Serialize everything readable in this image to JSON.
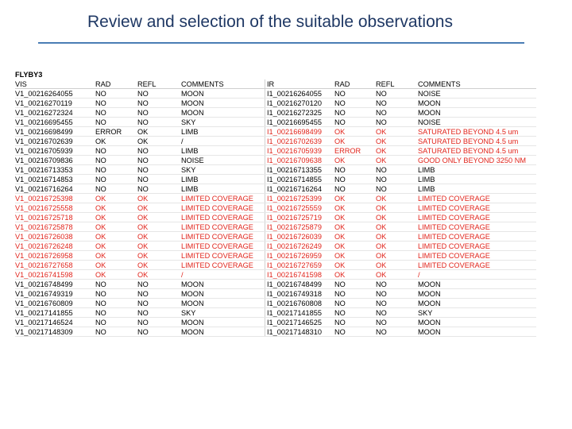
{
  "title": "Review and selection of the suitable observations",
  "sheet": {
    "flyby": "FLYBY3",
    "headers": [
      "VIS",
      "RAD",
      "REFL",
      "COMMENTS",
      "IR",
      "RAD",
      "REFL",
      "COMMENTS"
    ],
    "rows": [
      {
        "vis": "V1_00216264055",
        "vrad": "NO",
        "vrefl": "NO",
        "vcom": "MOON",
        "ir": "I1_00216264055",
        "irad": "NO",
        "irefl": "NO",
        "icom": "NOISE",
        "vred": false,
        "ired": false
      },
      {
        "vis": "V1_00216270119",
        "vrad": "NO",
        "vrefl": "NO",
        "vcom": "MOON",
        "ir": "I1_00216270120",
        "irad": "NO",
        "irefl": "NO",
        "icom": "MOON",
        "vred": false,
        "ired": false
      },
      {
        "vis": "V1_00216272324",
        "vrad": "NO",
        "vrefl": "NO",
        "vcom": "MOON",
        "ir": "I1_00216272325",
        "irad": "NO",
        "irefl": "NO",
        "icom": "MOON",
        "vred": false,
        "ired": false
      },
      {
        "vis": "V1_00216695455",
        "vrad": "NO",
        "vrefl": "NO",
        "vcom": "SKY",
        "ir": "I1_00216695455",
        "irad": "NO",
        "irefl": "NO",
        "icom": "NOISE",
        "vred": false,
        "ired": false
      },
      {
        "vis": "V1_00216698499",
        "vrad": "ERROR",
        "vrefl": "OK",
        "vcom": "LIMB",
        "ir": "I1_00216698499",
        "irad": "OK",
        "irefl": "OK",
        "icom": "SATURATED BEYOND 4.5 um",
        "vred": false,
        "ired": true
      },
      {
        "vis": "V1_00216702639",
        "vrad": "OK",
        "vrefl": "OK",
        "vcom": "/",
        "ir": "I1_00216702639",
        "irad": "OK",
        "irefl": "OK",
        "icom": "SATURATED BEYOND 4.5 um",
        "vred": false,
        "ired": true
      },
      {
        "vis": "V1_00216705939",
        "vrad": "NO",
        "vrefl": "NO",
        "vcom": "LIMB",
        "ir": "I1_00216705939",
        "irad": "ERROR",
        "irefl": "OK",
        "icom": "SATURATED BEYOND 4.5 um",
        "vred": false,
        "ired": true
      },
      {
        "vis": "V1_00216709836",
        "vrad": "NO",
        "vrefl": "NO",
        "vcom": "NOISE",
        "ir": "I1_00216709638",
        "irad": "OK",
        "irefl": "OK",
        "icom": "GOOD ONLY BEYOND 3250 NM",
        "vred": false,
        "ired": true
      },
      {
        "vis": "V1_00216713353",
        "vrad": "NO",
        "vrefl": "NO",
        "vcom": "SKY",
        "ir": "I1_00216713355",
        "irad": "NO",
        "irefl": "NO",
        "icom": "LIMB",
        "vred": false,
        "ired": false
      },
      {
        "vis": "V1_00216714853",
        "vrad": "NO",
        "vrefl": "NO",
        "vcom": "LIMB",
        "ir": "I1_00216714855",
        "irad": "NO",
        "irefl": "NO",
        "icom": "LIMB",
        "vred": false,
        "ired": false
      },
      {
        "vis": "V1_00216716264",
        "vrad": "NO",
        "vrefl": "NO",
        "vcom": "LIMB",
        "ir": "I1_00216716264",
        "irad": "NO",
        "irefl": "NO",
        "icom": "LIMB",
        "vred": false,
        "ired": false
      },
      {
        "vis": "V1_00216725398",
        "vrad": "OK",
        "vrefl": "OK",
        "vcom": "LIMITED COVERAGE",
        "ir": "I1_00216725399",
        "irad": "OK",
        "irefl": "OK",
        "icom": "LIMITED COVERAGE",
        "vred": true,
        "ired": true
      },
      {
        "vis": "V1_00216725558",
        "vrad": "OK",
        "vrefl": "OK",
        "vcom": "LIMITED COVERAGE",
        "ir": "I1_00216725559",
        "irad": "OK",
        "irefl": "OK",
        "icom": "LIMITED COVERAGE",
        "vred": true,
        "ired": true
      },
      {
        "vis": "V1_00216725718",
        "vrad": "OK",
        "vrefl": "OK",
        "vcom": "LIMITED COVERAGE",
        "ir": "I1_00216725719",
        "irad": "OK",
        "irefl": "OK",
        "icom": "LIMITED COVERAGE",
        "vred": true,
        "ired": true
      },
      {
        "vis": "V1_00216725878",
        "vrad": "OK",
        "vrefl": "OK",
        "vcom": "LIMITED COVERAGE",
        "ir": "I1_00216725879",
        "irad": "OK",
        "irefl": "OK",
        "icom": "LIMITED COVERAGE",
        "vred": true,
        "ired": true
      },
      {
        "vis": "V1_00216726038",
        "vrad": "OK",
        "vrefl": "OK",
        "vcom": "LIMITED COVERAGE",
        "ir": "I1_00216726039",
        "irad": "OK",
        "irefl": "OK",
        "icom": "LIMITED COVERAGE",
        "vred": true,
        "ired": true
      },
      {
        "vis": "V1_00216726248",
        "vrad": "OK",
        "vrefl": "OK",
        "vcom": "LIMITED COVERAGE",
        "ir": "I1_00216726249",
        "irad": "OK",
        "irefl": "OK",
        "icom": "LIMITED COVERAGE",
        "vred": true,
        "ired": true
      },
      {
        "vis": "V1_00216726958",
        "vrad": "OK",
        "vrefl": "OK",
        "vcom": "LIMITED COVERAGE",
        "ir": "I1_00216726959",
        "irad": "OK",
        "irefl": "OK",
        "icom": "LIMITED COVERAGE",
        "vred": true,
        "ired": true
      },
      {
        "vis": "V1_00216727658",
        "vrad": "OK",
        "vrefl": "OK",
        "vcom": "LIMITED COVERAGE",
        "ir": "I1_00216727659",
        "irad": "OK",
        "irefl": "OK",
        "icom": "LIMITED COVERAGE",
        "vred": true,
        "ired": true
      },
      {
        "vis": "V1_00216741598",
        "vrad": "OK",
        "vrefl": "OK",
        "vcom": "/",
        "ir": "I1_00216741598",
        "irad": "OK",
        "irefl": "OK",
        "icom": "/",
        "vred": true,
        "ired": true
      },
      {
        "vis": "V1_00216748499",
        "vrad": "NO",
        "vrefl": "NO",
        "vcom": "MOON",
        "ir": "I1_00216748499",
        "irad": "NO",
        "irefl": "NO",
        "icom": "MOON",
        "vred": false,
        "ired": false
      },
      {
        "vis": "V1_00216749319",
        "vrad": "NO",
        "vrefl": "NO",
        "vcom": "MOON",
        "ir": "I1_00216749318",
        "irad": "NO",
        "irefl": "NO",
        "icom": "MOON",
        "vred": false,
        "ired": false
      },
      {
        "vis": "V1_00216760809",
        "vrad": "NO",
        "vrefl": "NO",
        "vcom": "MOON",
        "ir": "I1_00216760808",
        "irad": "NO",
        "irefl": "NO",
        "icom": "MOON",
        "vred": false,
        "ired": false
      },
      {
        "vis": "V1_00217141855",
        "vrad": "NO",
        "vrefl": "NO",
        "vcom": "SKY",
        "ir": "I1_00217141855",
        "irad": "NO",
        "irefl": "NO",
        "icom": "SKY",
        "vred": false,
        "ired": false
      },
      {
        "vis": "V1_00217146524",
        "vrad": "NO",
        "vrefl": "NO",
        "vcom": "MOON",
        "ir": "I1_00217146525",
        "irad": "NO",
        "irefl": "NO",
        "icom": "MOON",
        "vred": false,
        "ired": false
      },
      {
        "vis": "V1_00217148309",
        "vrad": "NO",
        "vrefl": "NO",
        "vcom": "MOON",
        "ir": "I1_00217148310",
        "irad": "NO",
        "irefl": "NO",
        "icom": "MOON",
        "vred": false,
        "ired": false
      }
    ]
  }
}
